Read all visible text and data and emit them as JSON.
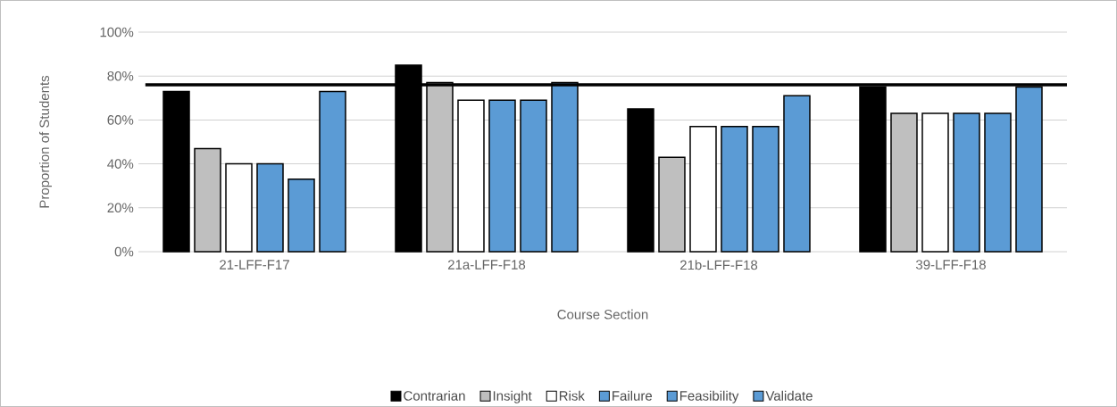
{
  "chart_data": {
    "type": "bar",
    "xlabel": "Course Section",
    "ylabel": "Proportion of Students",
    "categories": [
      "21-LFF-F17",
      "21a-LFF-F18",
      "21b-LFF-F18",
      "39-LFF-F18"
    ],
    "series": [
      {
        "name": "Contrarian",
        "color": "#000000",
        "values": [
          73,
          85,
          65,
          75
        ]
      },
      {
        "name": "Insight",
        "color": "#bfbfbf",
        "values": [
          47,
          77,
          43,
          63
        ]
      },
      {
        "name": "Risk",
        "color": "#ffffff",
        "values": [
          40,
          69,
          57,
          63
        ]
      },
      {
        "name": "Failure",
        "color": "#5b9bd5",
        "values": [
          40,
          69,
          57,
          63
        ]
      },
      {
        "name": "Feasibility",
        "color": "#5b9bd5",
        "values": [
          33,
          69,
          57,
          63
        ]
      },
      {
        "name": "Validate",
        "color": "#5b9bd5",
        "values": [
          73,
          77,
          71,
          75
        ]
      }
    ],
    "ylim": [
      0,
      100
    ],
    "yticks": [
      {
        "value": 0,
        "label": "0%"
      },
      {
        "value": 20,
        "label": "20%"
      },
      {
        "value": 40,
        "label": "40%"
      },
      {
        "value": 60,
        "label": "60%"
      },
      {
        "value": 80,
        "label": "80%"
      },
      {
        "value": 100,
        "label": "100%"
      }
    ],
    "ref_lines": [
      {
        "axis": "y",
        "value": 76,
        "color": "#000000"
      }
    ],
    "grid": "y",
    "legend": "bottom"
  }
}
